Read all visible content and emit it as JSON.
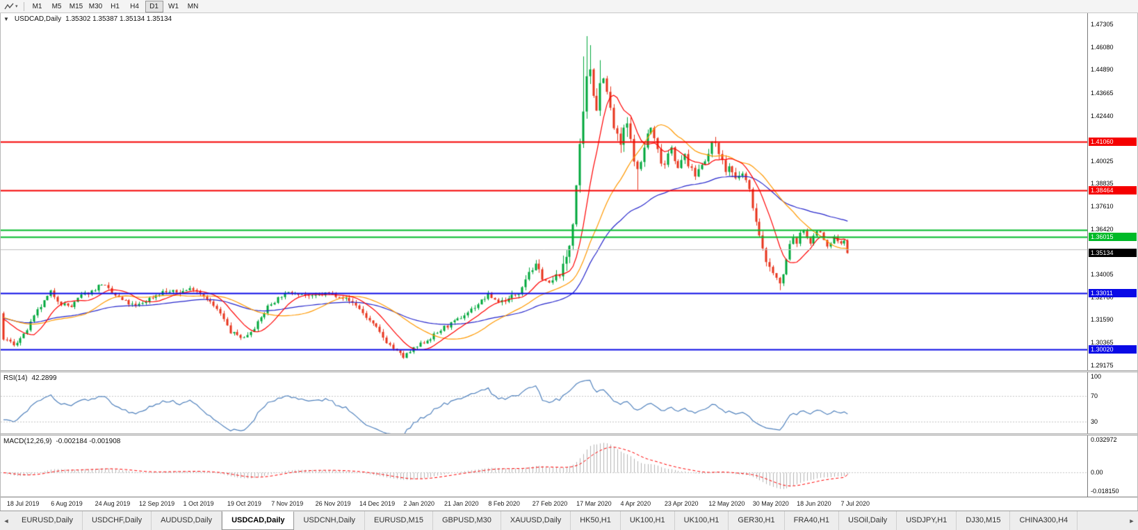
{
  "toolbar": {
    "timeframes": [
      "M1",
      "M5",
      "M15",
      "M30",
      "H1",
      "H4",
      "D1",
      "W1",
      "MN"
    ],
    "active_timeframe": "D1"
  },
  "icons": {
    "chart_tool": "zigzag-line",
    "dropdown_caret": "▾",
    "one_click_toggle": "▼",
    "tab_scroll_left": "◄",
    "tab_scroll_right": "►"
  },
  "chart": {
    "title_symbol": "USDCAD,Daily",
    "title_ohlc": "1.35302 1.35387 1.35134 1.35134",
    "price_axis_ticks": [
      "1.47305",
      "1.46080",
      "1.44890",
      "1.43665",
      "1.42440",
      "1.40025",
      "1.38835",
      "1.37610",
      "1.36420",
      "1.34005",
      "1.32780",
      "1.31590",
      "1.30365",
      "1.29175"
    ],
    "price_markers": [
      {
        "label": "1.41060",
        "color": "#F50000",
        "type": "line"
      },
      {
        "label": "1.38464",
        "color": "#F50000",
        "type": "line"
      },
      {
        "label": "1.36015",
        "color": "#00BA28",
        "type": "line"
      },
      {
        "label": "1.35134",
        "color": "#000000",
        "type": "current"
      },
      {
        "label": "1.33011",
        "color": "#0A0AE6",
        "type": "line"
      },
      {
        "label": "1.30020",
        "color": "#0A0AE6",
        "type": "line"
      }
    ],
    "hlines": [
      {
        "price": 1.4106,
        "color": "#F50000",
        "width": 2
      },
      {
        "price": 1.38464,
        "color": "#F50000",
        "width": 2
      },
      {
        "price": 1.3635,
        "color": "#00BA28",
        "width": 2
      },
      {
        "price": 1.36015,
        "color": "#00BA28",
        "width": 2
      },
      {
        "price": 1.3533,
        "color": "#C0C0C0",
        "width": 1
      },
      {
        "price": 1.33011,
        "color": "#0A0AE6",
        "width": 2
      },
      {
        "price": 1.3002,
        "color": "#0A0AE6",
        "width": 2
      }
    ]
  },
  "rsi_panel": {
    "name": "RSI(14)",
    "value": "42.2899",
    "axis": [
      {
        "label": "100",
        "value": 100
      },
      {
        "label": "70",
        "value": 70
      },
      {
        "label": "30",
        "value": 30
      }
    ]
  },
  "macd_panel": {
    "name": "MACD(12,26,9)",
    "values": "-0.002184 -0.001908",
    "axis": [
      {
        "label": "0.032972",
        "value": 0.032972
      },
      {
        "label": "0.00",
        "value": 0
      },
      {
        "label": "-0.018150",
        "value": -0.01815
      }
    ]
  },
  "tabbar": {
    "items": [
      "EURUSD,Daily",
      "USDCHF,Daily",
      "AUDUSD,Daily",
      "USDCAD,Daily",
      "USDCNH,Daily",
      "EURUSD,M15",
      "GBPUSD,M30",
      "XAUUSD,Daily",
      "HK50,H1",
      "UK100,H1",
      "UK100,H1",
      "GER30,H1",
      "FRA40,H1",
      "USOil,Daily",
      "USDJPY,H1",
      "DJ30,M15",
      "CHINA300,H4"
    ],
    "active_index": 3
  },
  "chart_data": {
    "type": "candlestick",
    "symbol": "USDCAD",
    "timeframe": "Daily",
    "title": "USDCAD,Daily 1.35302 1.35387 1.35134 1.35134",
    "n_candles": 250,
    "seed": 7,
    "grid": false,
    "price_range": [
      1.289,
      1.479
    ],
    "last_open": 1.35302,
    "last_high": 1.35387,
    "last_low": 1.35134,
    "last_close": 1.35134,
    "up_color": "#00A83C",
    "down_color": "#E8341C",
    "warmup": {
      "count": 70,
      "price": 1.317
    },
    "close_anchors": [
      [
        0,
        1.3058
      ],
      [
        3,
        1.3028
      ],
      [
        6,
        1.3075
      ],
      [
        10,
        1.3205
      ],
      [
        14,
        1.3305
      ],
      [
        17,
        1.3245
      ],
      [
        20,
        1.3228
      ],
      [
        23,
        1.3288
      ],
      [
        26,
        1.331
      ],
      [
        29,
        1.3352
      ],
      [
        32,
        1.33
      ],
      [
        35,
        1.3262
      ],
      [
        39,
        1.3228
      ],
      [
        43,
        1.3272
      ],
      [
        47,
        1.3308
      ],
      [
        52,
        1.3305
      ],
      [
        56,
        1.3328
      ],
      [
        60,
        1.3272
      ],
      [
        64,
        1.319
      ],
      [
        67,
        1.3092
      ],
      [
        71,
        1.3062
      ],
      [
        75,
        1.314
      ],
      [
        78,
        1.3228
      ],
      [
        82,
        1.3288
      ],
      [
        86,
        1.3308
      ],
      [
        91,
        1.3278
      ],
      [
        95,
        1.3298
      ],
      [
        99,
        1.3288
      ],
      [
        104,
        1.3238
      ],
      [
        107,
        1.3172
      ],
      [
        110,
        1.3112
      ],
      [
        113,
        1.3042
      ],
      [
        116,
        1.2988
      ],
      [
        118,
        1.296
      ],
      [
        121,
        1.3002
      ],
      [
        124,
        1.304
      ],
      [
        127,
        1.3075
      ],
      [
        130,
        1.3118
      ],
      [
        133,
        1.3145
      ],
      [
        136,
        1.3185
      ],
      [
        139,
        1.3228
      ],
      [
        143,
        1.329
      ],
      [
        146,
        1.3255
      ],
      [
        149,
        1.3268
      ],
      [
        152,
        1.331
      ],
      [
        155,
        1.3418
      ],
      [
        157,
        1.3442
      ],
      [
        159,
        1.3388
      ],
      [
        161,
        1.3345
      ],
      [
        163,
        1.3388
      ],
      [
        165,
        1.3425
      ],
      [
        167,
        1.356
      ],
      [
        168,
        1.369
      ],
      [
        169,
        1.387
      ],
      [
        170,
        1.406
      ],
      [
        171,
        1.424
      ],
      [
        172,
        1.443
      ],
      [
        173,
        1.4498
      ],
      [
        174,
        1.4375
      ],
      [
        175,
        1.429
      ],
      [
        176,
        1.4415
      ],
      [
        177,
        1.447
      ],
      [
        178,
        1.4355
      ],
      [
        179,
        1.4275
      ],
      [
        180,
        1.418
      ],
      [
        181,
        1.412
      ],
      [
        182,
        1.4092
      ],
      [
        183,
        1.4155
      ],
      [
        184,
        1.4198
      ],
      [
        185,
        1.41
      ],
      [
        186,
        1.402
      ],
      [
        187,
        1.3948
      ],
      [
        188,
        1.3998
      ],
      [
        189,
        1.4078
      ],
      [
        190,
        1.4148
      ],
      [
        191,
        1.4178
      ],
      [
        192,
        1.4118
      ],
      [
        193,
        1.4058
      ],
      [
        194,
        1.4008
      ],
      [
        195,
        1.3988
      ],
      [
        196,
        1.4048
      ],
      [
        197,
        1.4088
      ],
      [
        198,
        1.4018
      ],
      [
        199,
        1.3958
      ],
      [
        200,
        1.3998
      ],
      [
        201,
        1.4038
      ],
      [
        202,
        1.3988
      ],
      [
        203,
        1.3948
      ],
      [
        204,
        1.3928
      ],
      [
        205,
        1.3958
      ],
      [
        206,
        1.3998
      ],
      [
        207,
        1.4018
      ],
      [
        208,
        1.4038
      ],
      [
        209,
        1.4088
      ],
      [
        210,
        1.4108
      ],
      [
        211,
        1.4058
      ],
      [
        212,
        1.3998
      ],
      [
        213,
        1.3948
      ],
      [
        214,
        1.3978
      ],
      [
        216,
        1.3898
      ],
      [
        218,
        1.3938
      ],
      [
        219,
        1.3898
      ],
      [
        220,
        1.3838
      ],
      [
        221,
        1.3768
      ],
      [
        222,
        1.3678
      ],
      [
        223,
        1.3598
      ],
      [
        224,
        1.3528
      ],
      [
        225,
        1.3478
      ],
      [
        226,
        1.3438
      ],
      [
        227,
        1.3408
      ],
      [
        228,
        1.3378
      ],
      [
        229,
        1.3348
      ],
      [
        230,
        1.3398
      ],
      [
        231,
        1.3478
      ],
      [
        232,
        1.3558
      ],
      [
        233,
        1.3598
      ],
      [
        234,
        1.3568
      ],
      [
        235,
        1.3608
      ],
      [
        236,
        1.3638
      ],
      [
        237,
        1.3598
      ],
      [
        238,
        1.3568
      ],
      [
        239,
        1.3598
      ],
      [
        240,
        1.3638
      ],
      [
        241,
        1.3618
      ],
      [
        242,
        1.3578
      ],
      [
        243,
        1.3548
      ],
      [
        244,
        1.3568
      ],
      [
        245,
        1.3598
      ],
      [
        246,
        1.3578
      ],
      [
        247,
        1.3568
      ],
      [
        248,
        1.3588
      ],
      [
        249,
        1.35134
      ]
    ],
    "volatility_zones": [
      [
        0,
        150,
        0.0016
      ],
      [
        150,
        165,
        0.0024
      ],
      [
        165,
        186,
        0.005
      ],
      [
        186,
        216,
        0.0028
      ],
      [
        216,
        236,
        0.0026
      ],
      [
        236,
        250,
        0.0013
      ]
    ],
    "high_spikes": [
      [
        157,
        1.3465
      ],
      [
        171,
        1.456
      ],
      [
        172,
        1.4668
      ],
      [
        173,
        1.462
      ],
      [
        176,
        1.454
      ]
    ],
    "low_spikes": [
      [
        118,
        1.2952
      ],
      [
        187,
        1.385
      ],
      [
        229,
        1.3316
      ]
    ],
    "moving_averages": [
      {
        "period": 10,
        "method": "sma",
        "color": "#FF0000"
      },
      {
        "period": 25,
        "method": "sma",
        "color": "#FF9900"
      },
      {
        "period": 55,
        "method": "ema",
        "color": "#2525CC"
      }
    ],
    "rsi": {
      "period": 14,
      "last": 42.2899,
      "color": "#4F81BD",
      "range": [
        12,
        107
      ],
      "levels": [
        70,
        30
      ]
    },
    "macd": {
      "fast": 12,
      "slow": 26,
      "signal": 9,
      "last_macd": -0.002184,
      "last_signal": -0.001908,
      "hist_color": "#B4B4B4",
      "signal_color": "#FF0000",
      "range": [
        -0.024,
        0.037
      ]
    },
    "date_ticks": [
      "18 Jul 2019",
      "6 Aug 2019",
      "24 Aug 2019",
      "12 Sep 2019",
      "1 Oct 2019",
      "19 Oct 2019",
      "7 Nov 2019",
      "26 Nov 2019",
      "14 Dec 2019",
      "2 Jan 2020",
      "21 Jan 2020",
      "8 Feb 2020",
      "27 Feb 2020",
      "17 Mar 2020",
      "4 Apr 2020",
      "23 Apr 2020",
      "12 May 2020",
      "30 May 2020",
      "18 Jun 2020",
      "7 Jul 2020"
    ]
  }
}
